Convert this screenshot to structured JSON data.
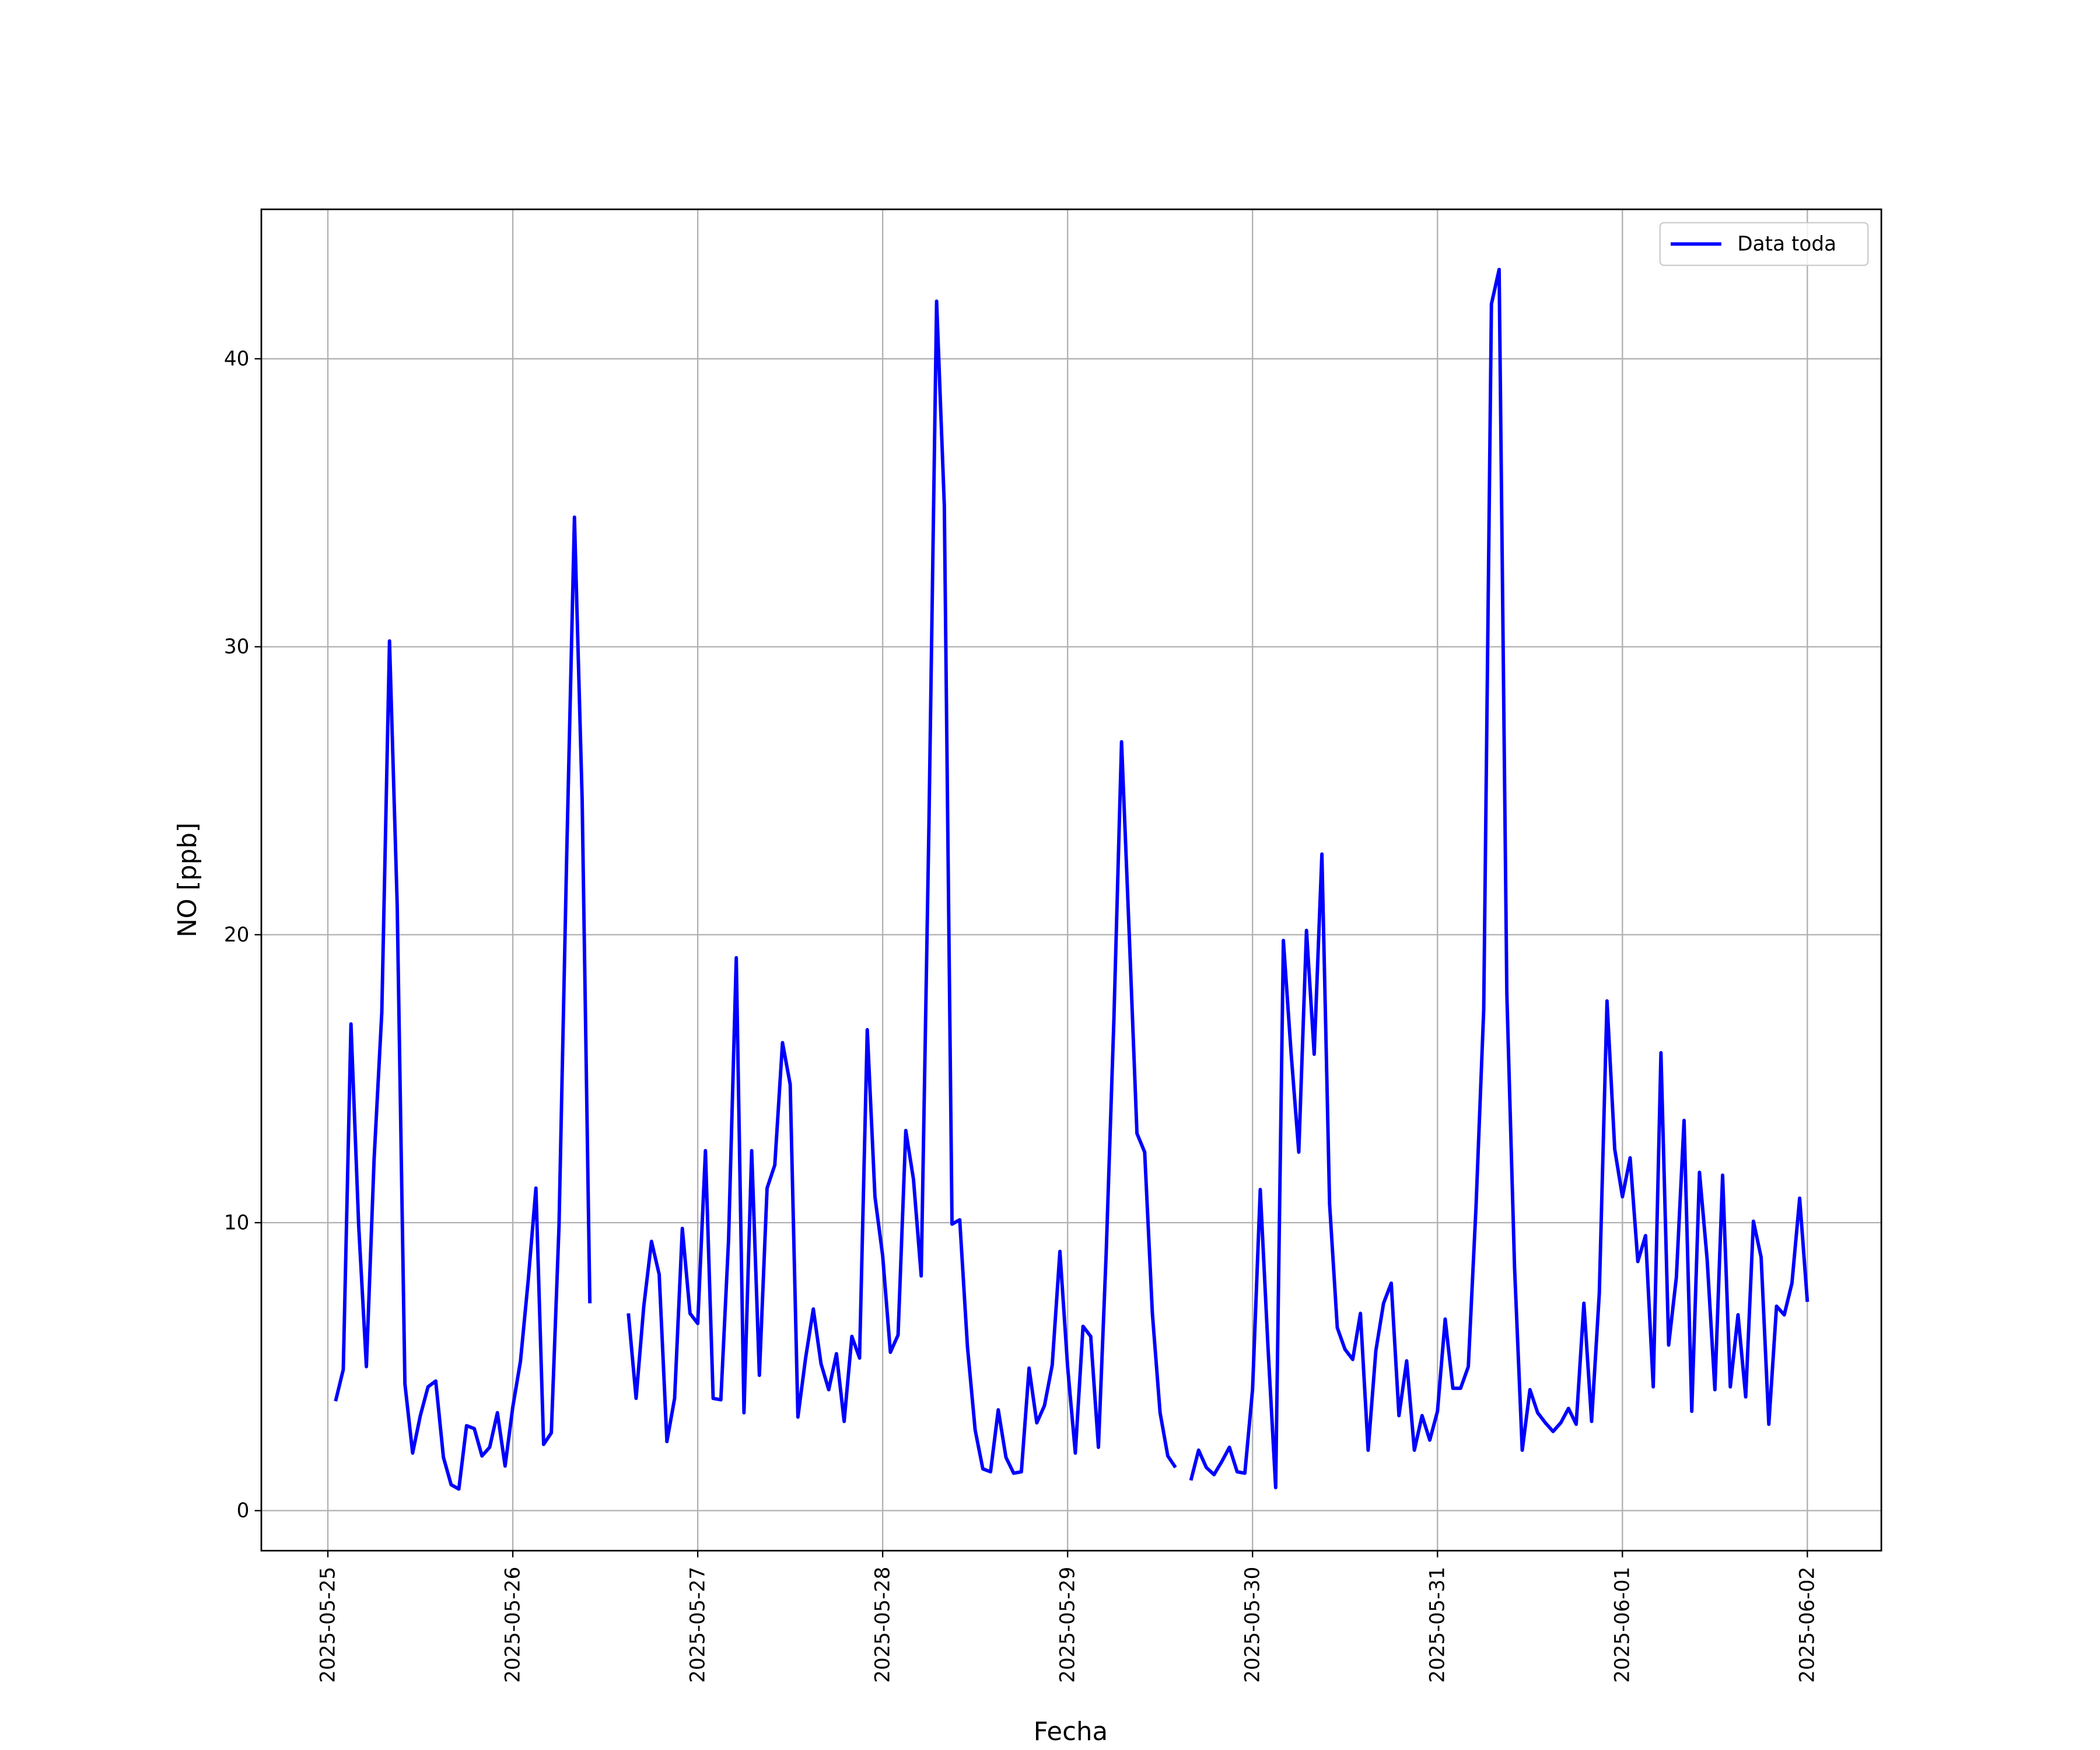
{
  "chart_data": {
    "type": "line",
    "xlabel": "Fecha",
    "ylabel": "NO [ppb]",
    "legend": "upper right",
    "grid": true,
    "xlim": [
      "2025-05-24 15:22",
      "2025-06-02 09:36"
    ],
    "ylim": [
      -1.39,
      45.19
    ],
    "xticks": [
      "2025-05-25",
      "2025-05-26",
      "2025-05-27",
      "2025-05-28",
      "2025-05-29",
      "2025-05-30",
      "2025-05-31",
      "2025-06-01",
      "2025-06-02"
    ],
    "yticks": [
      0,
      10,
      20,
      30,
      40
    ],
    "x": [
      "2025-05-25 01:00",
      "2025-05-25 02:00",
      "2025-05-25 03:00",
      "2025-05-25 04:00",
      "2025-05-25 05:00",
      "2025-05-25 06:00",
      "2025-05-25 07:00",
      "2025-05-25 08:00",
      "2025-05-25 09:00",
      "2025-05-25 10:00",
      "2025-05-25 11:00",
      "2025-05-25 12:00",
      "2025-05-25 13:00",
      "2025-05-25 14:00",
      "2025-05-25 15:00",
      "2025-05-25 16:00",
      "2025-05-25 17:00",
      "2025-05-25 18:00",
      "2025-05-25 19:00",
      "2025-05-25 20:00",
      "2025-05-25 21:00",
      "2025-05-25 22:00",
      "2025-05-25 23:00",
      "2025-05-26 00:00",
      "2025-05-26 01:00",
      "2025-05-26 02:00",
      "2025-05-26 03:00",
      "2025-05-26 04:00",
      "2025-05-26 05:00",
      "2025-05-26 06:00",
      "2025-05-26 07:00",
      "2025-05-26 08:00",
      "2025-05-26 09:00",
      "2025-05-26 10:00",
      "2025-05-26 11:00",
      "2025-05-26 12:00",
      "2025-05-26 13:00",
      "2025-05-26 14:00",
      "2025-05-26 15:00",
      "2025-05-26 16:00",
      "2025-05-26 17:00",
      "2025-05-26 18:00",
      "2025-05-26 19:00",
      "2025-05-26 20:00",
      "2025-05-26 21:00",
      "2025-05-26 22:00",
      "2025-05-26 23:00",
      "2025-05-27 00:00",
      "2025-05-27 01:00",
      "2025-05-27 02:00",
      "2025-05-27 03:00",
      "2025-05-27 04:00",
      "2025-05-27 05:00",
      "2025-05-27 06:00",
      "2025-05-27 07:00",
      "2025-05-27 08:00",
      "2025-05-27 09:00",
      "2025-05-27 10:00",
      "2025-05-27 11:00",
      "2025-05-27 12:00",
      "2025-05-27 13:00",
      "2025-05-27 14:00",
      "2025-05-27 15:00",
      "2025-05-27 16:00",
      "2025-05-27 17:00",
      "2025-05-27 18:00",
      "2025-05-27 19:00",
      "2025-05-27 20:00",
      "2025-05-27 21:00",
      "2025-05-27 22:00",
      "2025-05-27 23:00",
      "2025-05-28 00:00",
      "2025-05-28 01:00",
      "2025-05-28 02:00",
      "2025-05-28 03:00",
      "2025-05-28 04:00",
      "2025-05-28 05:00",
      "2025-05-28 06:00",
      "2025-05-28 07:00",
      "2025-05-28 08:00",
      "2025-05-28 09:00",
      "2025-05-28 10:00",
      "2025-05-28 11:00",
      "2025-05-28 12:00",
      "2025-05-28 13:00",
      "2025-05-28 14:00",
      "2025-05-28 15:00",
      "2025-05-28 16:00",
      "2025-05-28 17:00",
      "2025-05-28 18:00",
      "2025-05-28 19:00",
      "2025-05-28 20:00",
      "2025-05-28 21:00",
      "2025-05-28 22:00",
      "2025-05-28 23:00",
      "2025-05-29 00:00",
      "2025-05-29 01:00",
      "2025-05-29 02:00",
      "2025-05-29 03:00",
      "2025-05-29 04:00",
      "2025-05-29 05:00",
      "2025-05-29 06:00",
      "2025-05-29 07:00",
      "2025-05-29 08:00",
      "2025-05-29 09:00",
      "2025-05-29 10:00",
      "2025-05-29 11:00",
      "2025-05-29 12:00",
      "2025-05-29 13:00",
      "2025-05-29 14:00",
      "2025-05-29 15:00",
      "2025-05-29 16:00",
      "2025-05-29 17:00",
      "2025-05-29 18:00",
      "2025-05-29 19:00",
      "2025-05-29 20:00",
      "2025-05-29 21:00",
      "2025-05-29 22:00",
      "2025-05-29 23:00",
      "2025-05-30 00:00",
      "2025-05-30 01:00",
      "2025-05-30 02:00",
      "2025-05-30 03:00",
      "2025-05-30 04:00",
      "2025-05-30 05:00",
      "2025-05-30 06:00",
      "2025-05-30 07:00",
      "2025-05-30 08:00",
      "2025-05-30 09:00",
      "2025-05-30 10:00",
      "2025-05-30 11:00",
      "2025-05-30 12:00",
      "2025-05-30 13:00",
      "2025-05-30 14:00",
      "2025-05-30 15:00",
      "2025-05-30 16:00",
      "2025-05-30 17:00",
      "2025-05-30 18:00",
      "2025-05-30 19:00",
      "2025-05-30 20:00",
      "2025-05-30 21:00",
      "2025-05-30 22:00",
      "2025-05-30 23:00",
      "2025-05-31 00:00",
      "2025-05-31 01:00",
      "2025-05-31 02:00",
      "2025-05-31 03:00",
      "2025-05-31 04:00",
      "2025-05-31 05:00",
      "2025-05-31 06:00",
      "2025-05-31 07:00",
      "2025-05-31 08:00",
      "2025-05-31 09:00",
      "2025-05-31 10:00",
      "2025-05-31 11:00",
      "2025-05-31 12:00",
      "2025-05-31 13:00",
      "2025-05-31 14:00",
      "2025-05-31 15:00",
      "2025-05-31 16:00",
      "2025-05-31 17:00",
      "2025-05-31 18:00",
      "2025-05-31 19:00",
      "2025-05-31 20:00",
      "2025-05-31 21:00",
      "2025-05-31 22:00",
      "2025-05-31 23:00",
      "2025-06-01 00:00",
      "2025-06-01 01:00",
      "2025-06-01 02:00",
      "2025-06-01 03:00",
      "2025-06-01 04:00",
      "2025-06-01 05:00",
      "2025-06-01 06:00",
      "2025-06-01 07:00",
      "2025-06-01 08:00",
      "2025-06-01 09:00",
      "2025-06-01 10:00",
      "2025-06-01 11:00",
      "2025-06-01 12:00",
      "2025-06-01 13:00",
      "2025-06-01 14:00",
      "2025-06-01 15:00",
      "2025-06-01 16:00",
      "2025-06-01 17:00",
      "2025-06-01 18:00",
      "2025-06-01 19:00",
      "2025-06-01 20:00",
      "2025-06-01 21:00",
      "2025-06-01 22:00",
      "2025-06-01 23:00",
      "2025-06-02 00:00"
    ],
    "series": [
      {
        "name": "Data toda",
        "color": "#0000ff",
        "values": [
          3.8,
          4.9,
          16.9,
          9.9,
          5.0,
          12.2,
          17.3,
          30.2,
          21.0,
          4.4,
          2.0,
          3.3,
          4.3,
          4.5,
          1.85,
          0.9,
          0.75,
          2.95,
          2.85,
          1.9,
          2.2,
          3.4,
          1.55,
          3.6,
          5.2,
          8.0,
          11.2,
          2.3,
          2.7,
          9.9,
          22.8,
          34.5,
          24.7,
          7.2,
          null,
          null,
          null,
          null,
          6.85,
          3.9,
          7.1,
          9.35,
          8.2,
          2.4,
          3.9,
          9.8,
          6.85,
          6.5,
          12.5,
          3.9,
          3.85,
          9.4,
          19.2,
          3.4,
          12.5,
          4.7,
          11.2,
          12.0,
          16.25,
          14.8,
          3.25,
          5.3,
          7.0,
          5.1,
          4.2,
          5.45,
          3.1,
          6.05,
          5.3,
          16.7,
          10.9,
          8.85,
          5.5,
          6.1,
          13.2,
          11.5,
          8.15,
          23.75,
          42.0,
          34.9,
          9.95,
          10.1,
          5.7,
          2.8,
          1.45,
          1.35,
          3.5,
          1.85,
          1.3,
          1.35,
          4.95,
          3.05,
          3.65,
          5.05,
          9.0,
          5.0,
          2.0,
          6.4,
          6.05,
          2.2,
          8.9,
          17.0,
          26.7,
          20.0,
          13.1,
          12.45,
          6.85,
          3.4,
          1.9,
          1.5,
          null,
          1.05,
          2.1,
          1.5,
          1.25,
          1.7,
          2.2,
          1.35,
          1.3,
          4.2,
          11.15,
          5.7,
          0.8,
          19.8,
          15.9,
          12.45,
          20.15,
          15.85,
          22.8,
          10.65,
          6.35,
          5.6,
          5.25,
          6.85,
          2.1,
          5.55,
          7.2,
          7.9,
          3.3,
          5.2,
          2.1,
          3.3,
          2.45,
          3.45,
          6.65,
          4.25,
          4.25,
          5.0,
          10.55,
          17.4,
          41.9,
          43.1,
          17.95,
          8.45,
          2.1,
          4.2,
          3.4,
          3.05,
          2.75,
          3.05,
          3.55,
          3.0,
          7.2,
          3.1,
          7.55,
          17.7,
          12.55,
          10.9,
          12.25,
          8.65,
          9.55,
          4.3,
          15.9,
          5.75,
          8.1,
          13.55,
          3.45,
          11.75,
          8.7,
          4.2,
          11.65,
          4.3,
          6.8,
          3.95,
          10.05,
          8.8,
          3.0,
          7.1,
          6.8,
          7.9,
          10.85,
          7.25
        ]
      }
    ]
  }
}
